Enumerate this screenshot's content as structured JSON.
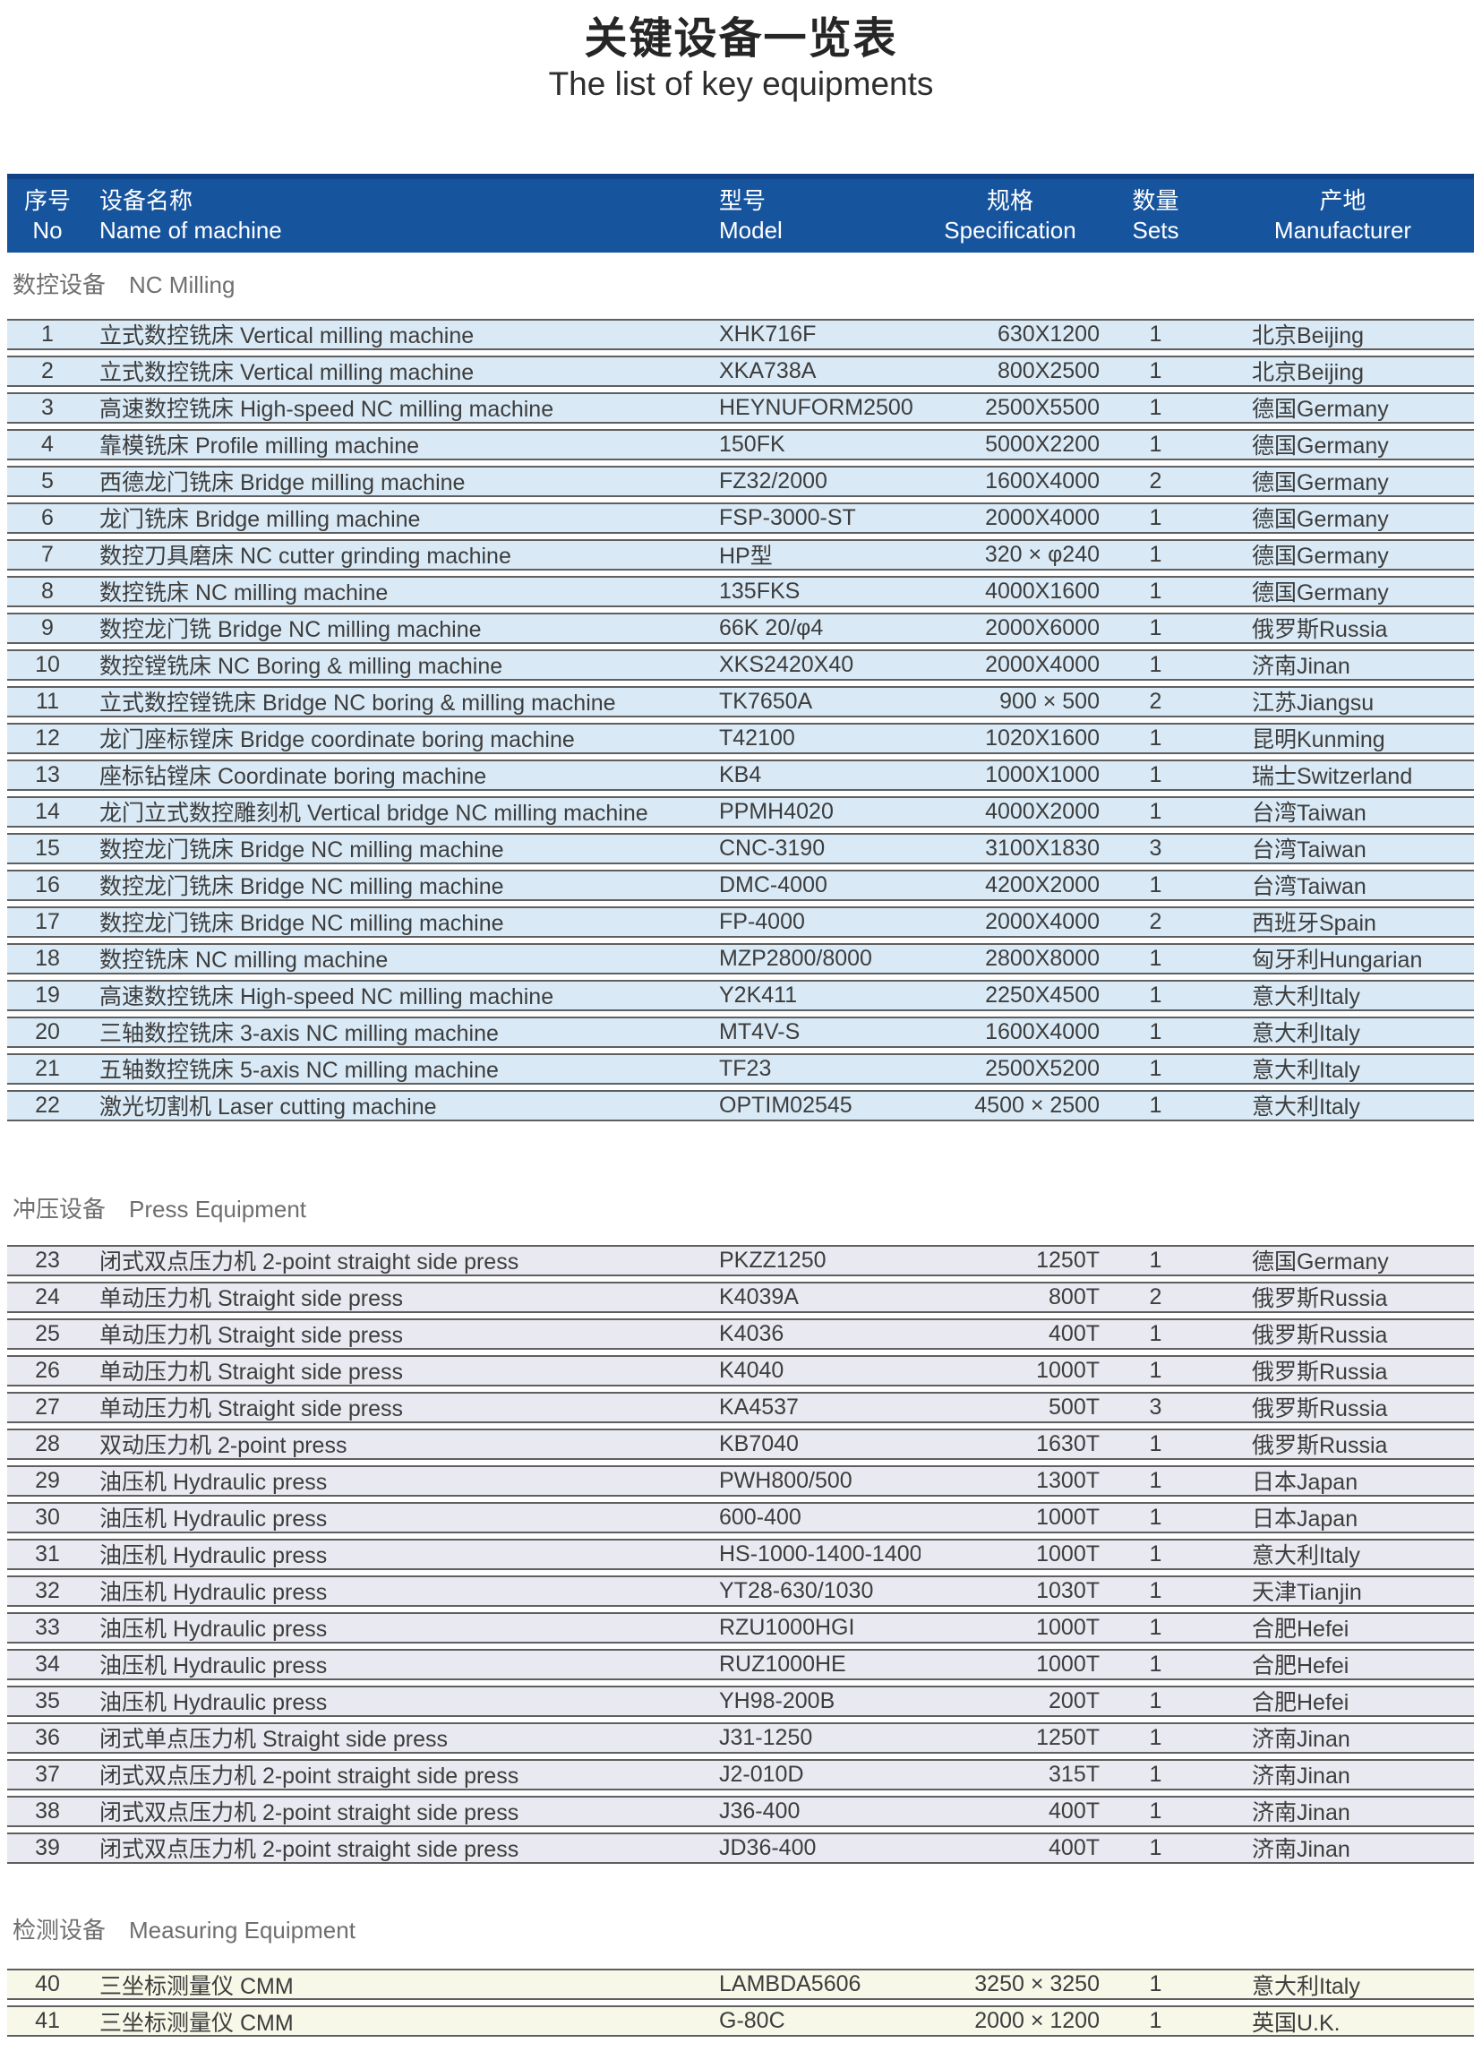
{
  "title": {
    "zh": "关键设备一览表",
    "en": "The list of key equipments"
  },
  "columns": {
    "no": {
      "zh": "序号",
      "en": "No"
    },
    "name": {
      "zh": "设备名称",
      "en": "Name of machine"
    },
    "model": {
      "zh": "型号",
      "en": "Model"
    },
    "spec": {
      "zh": "规格",
      "en": "Specification"
    },
    "sets": {
      "zh": "数量",
      "en": "Sets"
    },
    "mfr": {
      "zh": "产地",
      "en": "Manufacturer"
    }
  },
  "colors": {
    "header_bg": "#17549e",
    "header_top": "#0f4286",
    "row_border": "#5f5f5f",
    "nc_row_bg": "#d9eaf6",
    "press_row_bg": "#e9e9f1",
    "measuring_row_bg": "#f7f8e8"
  },
  "sections": [
    {
      "label_zh": "数控设备",
      "label_en": "NC Milling",
      "row_bg": "#d9eaf6",
      "rows": [
        [
          "1",
          "立式数控铣床 Vertical milling machine",
          "XHK716F",
          "630X1200",
          "1",
          "北京Beijing"
        ],
        [
          "2",
          "立式数控铣床 Vertical milling machine",
          "XKA738A",
          "800X2500",
          "1",
          "北京Beijing"
        ],
        [
          "3",
          "高速数控铣床 High-speed NC milling machine",
          "HEYNUFORM2500",
          "2500X5500",
          "1",
          "德国Germany"
        ],
        [
          "4",
          "靠模铣床 Profile milling machine",
          "150FK",
          "5000X2200",
          "1",
          "德国Germany"
        ],
        [
          "5",
          "西德龙门铣床 Bridge milling machine",
          "FZ32/2000",
          "1600X4000",
          "2",
          "德国Germany"
        ],
        [
          "6",
          "龙门铣床 Bridge milling machine",
          "FSP-3000-ST",
          "2000X4000",
          "1",
          "德国Germany"
        ],
        [
          "7",
          "数控刀具磨床 NC cutter grinding machine",
          "HP型",
          "320 × φ240",
          "1",
          "德国Germany"
        ],
        [
          "8",
          "数控铣床 NC milling machine",
          "135FKS",
          "4000X1600",
          "1",
          "德国Germany"
        ],
        [
          "9",
          "数控龙门铣 Bridge NC milling machine",
          "66K 20/φ4",
          "2000X6000",
          "1",
          "俄罗斯Russia"
        ],
        [
          "10",
          "数控镗铣床 NC Boring & milling machine",
          "XKS2420X40",
          "2000X4000",
          "1",
          "济南Jinan"
        ],
        [
          "11",
          "立式数控镗铣床 Bridge NC boring & milling machine",
          "TK7650A",
          "900 × 500",
          "2",
          "江苏Jiangsu"
        ],
        [
          "12",
          "龙门座标镗床 Bridge coordinate boring machine",
          "T42100",
          "1020X1600",
          "1",
          "昆明Kunming"
        ],
        [
          "13",
          "座标钻镗床 Coordinate boring machine",
          "KB4",
          "1000X1000",
          "1",
          "瑞士Switzerland"
        ],
        [
          "14",
          "龙门立式数控雕刻机 Vertical bridge NC milling machine",
          "PPMH4020",
          "4000X2000",
          "1",
          "台湾Taiwan"
        ],
        [
          "15",
          "数控龙门铣床 Bridge NC milling machine",
          "CNC-3190",
          "3100X1830",
          "3",
          "台湾Taiwan"
        ],
        [
          "16",
          "数控龙门铣床 Bridge NC milling machine",
          "DMC-4000",
          "4200X2000",
          "1",
          "台湾Taiwan"
        ],
        [
          "17",
          "数控龙门铣床 Bridge NC milling machine",
          "FP-4000",
          "2000X4000",
          "2",
          "西班牙Spain"
        ],
        [
          "18",
          "数控铣床 NC milling machine",
          "MZP2800/8000",
          "2800X8000",
          "1",
          "匈牙利Hungarian"
        ],
        [
          "19",
          "高速数控铣床 High-speed NC milling machine",
          "Y2K411",
          "2250X4500",
          "1",
          "意大利Italy"
        ],
        [
          "20",
          "三轴数控铣床 3-axis NC milling machine",
          "MT4V-S",
          "1600X4000",
          "1",
          "意大利Italy"
        ],
        [
          "21",
          "五轴数控铣床 5-axis NC milling machine",
          "TF23",
          "2500X5200",
          "1",
          "意大利Italy"
        ],
        [
          "22",
          "激光切割机 Laser cutting machine",
          "OPTIM02545",
          "4500 × 2500",
          "1",
          "意大利Italy"
        ]
      ]
    },
    {
      "label_zh": "冲压设备",
      "label_en": "Press Equipment",
      "row_bg": "#e9e9f1",
      "rows": [
        [
          "23",
          "闭式双点压力机 2-point straight side press",
          "PKZZ1250",
          "1250T",
          "1",
          "德国Germany"
        ],
        [
          "24",
          "单动压力机 Straight side press",
          "K4039A",
          "800T",
          "2",
          "俄罗斯Russia"
        ],
        [
          "25",
          "单动压力机 Straight side press",
          "K4036",
          "400T",
          "1",
          "俄罗斯Russia"
        ],
        [
          "26",
          "单动压力机 Straight side press",
          "K4040",
          "1000T",
          "1",
          "俄罗斯Russia"
        ],
        [
          "27",
          "单动压力机 Straight side press",
          "KA4537",
          "500T",
          "3",
          "俄罗斯Russia"
        ],
        [
          "28",
          "双动压力机 2-point press",
          "KB7040",
          "1630T",
          "1",
          "俄罗斯Russia"
        ],
        [
          "29",
          "油压机 Hydraulic press",
          "PWH800/500",
          "1300T",
          "1",
          "日本Japan"
        ],
        [
          "30",
          "油压机 Hydraulic press",
          "600-400",
          "1000T",
          "1",
          "日本Japan"
        ],
        [
          "31",
          "油压机 Hydraulic press",
          "HS-1000-1400-1400",
          "1000T",
          "1",
          "意大利Italy"
        ],
        [
          "32",
          "油压机 Hydraulic press",
          "YT28-630/1030",
          "1030T",
          "1",
          "天津Tianjin"
        ],
        [
          "33",
          "油压机 Hydraulic press",
          "RZU1000HGI",
          "1000T",
          "1",
          "合肥Hefei"
        ],
        [
          "34",
          "油压机 Hydraulic press",
          "RUZ1000HE",
          "1000T",
          "1",
          "合肥Hefei"
        ],
        [
          "35",
          "油压机 Hydraulic press",
          "YH98-200B",
          "200T",
          "1",
          "合肥Hefei"
        ],
        [
          "36",
          "闭式单点压力机 Straight side press",
          "J31-1250",
          "1250T",
          "1",
          "济南Jinan"
        ],
        [
          "37",
          "闭式双点压力机 2-point straight side press",
          "J2-010D",
          "315T",
          "1",
          "济南Jinan"
        ],
        [
          "38",
          "闭式双点压力机 2-point straight side press",
          "J36-400",
          "400T",
          "1",
          "济南Jinan"
        ],
        [
          "39",
          "闭式双点压力机 2-point straight side press",
          "JD36-400",
          "400T",
          "1",
          "济南Jinan"
        ]
      ]
    },
    {
      "label_zh": "检测设备",
      "label_en": "Measuring Equipment",
      "row_bg": "#f7f8e8",
      "rows": [
        [
          "40",
          "三坐标测量仪 CMM",
          "LAMBDA5606",
          "3250 × 3250",
          "1",
          "意大利Italy"
        ],
        [
          "41",
          "三坐标测量仪 CMM",
          "G-80C",
          "2000 × 1200",
          "1",
          "英国U.K."
        ]
      ]
    }
  ]
}
